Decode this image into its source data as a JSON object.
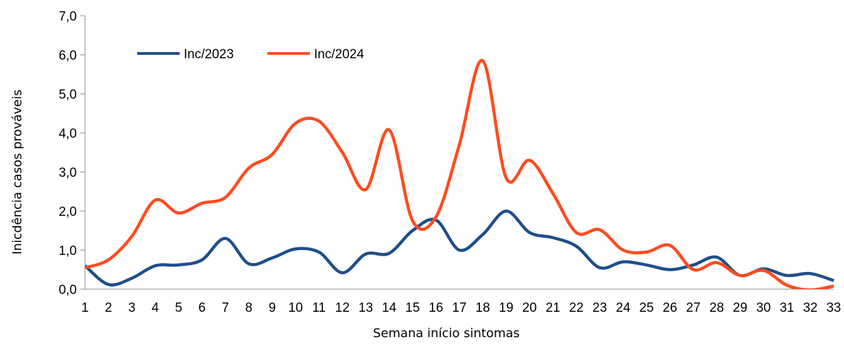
{
  "chart_data": {
    "type": "line",
    "title": "",
    "xlabel": "Semana início sintomas",
    "ylabel": "Inicdência casos prováveis",
    "x": [
      1,
      2,
      3,
      4,
      5,
      6,
      7,
      8,
      9,
      10,
      11,
      12,
      13,
      14,
      15,
      16,
      17,
      18,
      19,
      20,
      21,
      22,
      23,
      24,
      25,
      26,
      27,
      28,
      29,
      30,
      31,
      32,
      33
    ],
    "ylim": [
      0,
      7
    ],
    "yticks": [
      "0,0",
      "1,0",
      "2,0",
      "3,0",
      "4,0",
      "5,0",
      "6,0",
      "7,0"
    ],
    "legend_position": "top-left",
    "grid": false,
    "series": [
      {
        "name": "Inc/2023",
        "color": "#1f4e8c",
        "values": [
          0.6,
          0.12,
          0.28,
          0.6,
          0.62,
          0.75,
          1.3,
          0.65,
          0.8,
          1.03,
          0.95,
          0.42,
          0.9,
          0.92,
          1.5,
          1.77,
          1.0,
          1.4,
          2.0,
          1.45,
          1.32,
          1.1,
          0.55,
          0.7,
          0.62,
          0.5,
          0.62,
          0.82,
          0.35,
          0.52,
          0.35,
          0.4,
          0.22
        ]
      },
      {
        "name": "Inc/2024",
        "color": "#ff4b1f",
        "values": [
          0.55,
          0.75,
          1.35,
          2.28,
          1.95,
          2.2,
          2.35,
          3.1,
          3.45,
          4.25,
          4.3,
          3.5,
          2.55,
          4.08,
          1.75,
          1.85,
          3.7,
          5.85,
          2.85,
          3.3,
          2.45,
          1.45,
          1.52,
          1.0,
          0.95,
          1.12,
          0.5,
          0.68,
          0.35,
          0.48,
          0.1,
          -0.02,
          0.08
        ]
      }
    ]
  }
}
